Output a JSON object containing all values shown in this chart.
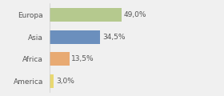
{
  "categories": [
    "Europa",
    "Asia",
    "Africa",
    "America"
  ],
  "values": [
    49.0,
    34.5,
    13.5,
    3.0
  ],
  "labels": [
    "49,0%",
    "34,5%",
    "13,5%",
    "3,0%"
  ],
  "bar_colors": [
    "#b5c98e",
    "#6b8fbd",
    "#e8aa72",
    "#e8d870"
  ],
  "background_color": "#f0f0f0",
  "xlim": [
    0,
    100
  ],
  "bar_height": 0.62,
  "label_fontsize": 6.5,
  "category_fontsize": 6.5,
  "text_color": "#555555"
}
